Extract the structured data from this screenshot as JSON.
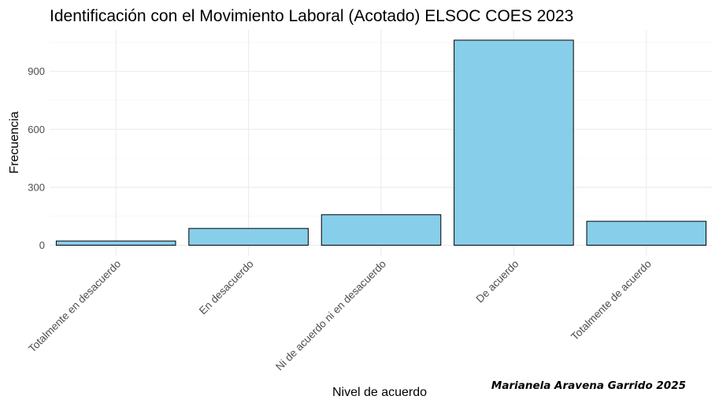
{
  "chart_data": {
    "type": "bar",
    "title": "Identificación con el Movimiento Laboral (Acotado) ELSOC COES 2023",
    "xlabel": "Nivel de acuerdo",
    "ylabel": "Frecuencia",
    "caption": "Marianela Aravena Garrido 2025",
    "categories": [
      "Totalmente en desacuerdo",
      "En desacuerdo",
      "Ni de acuerdo ni en desacuerdo",
      "De acuerdo",
      "Totalmente de acuerdo"
    ],
    "values": [
      22,
      87,
      158,
      1062,
      124
    ],
    "yticks": [
      0,
      300,
      600,
      900
    ],
    "ylim": [
      -55,
      1115
    ],
    "bar_color": "#87CEEB",
    "bar_border": "#000000",
    "grid": true,
    "legend": "none"
  }
}
